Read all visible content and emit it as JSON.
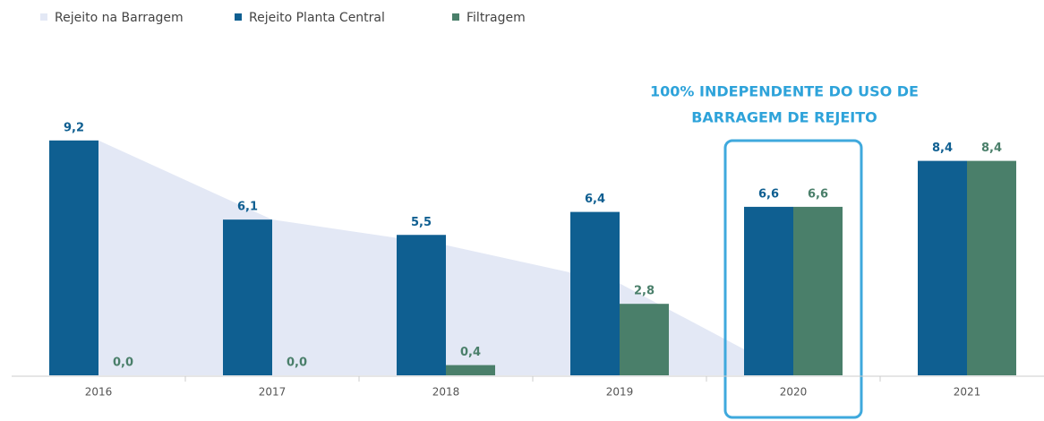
{
  "chart_data": {
    "type": "bar",
    "categories": [
      "2016",
      "2017",
      "2018",
      "2019",
      "2020",
      "2021"
    ],
    "series": [
      {
        "name": "Rejeito na Barragem",
        "color": "#e3e8f5",
        "kind": "area",
        "values": [
          9.2,
          6.1,
          5.1,
          3.6,
          0,
          null
        ]
      },
      {
        "name": "Rejeito Planta Central",
        "color": "#0f5f91",
        "values": [
          9.2,
          6.1,
          5.5,
          6.4,
          6.6,
          8.4
        ],
        "value_labels": [
          "9,2",
          "6,1",
          "5,5",
          "6,4",
          "6,6",
          "8,4"
        ]
      },
      {
        "name": "Filtragem",
        "color": "#4a7f6a",
        "values": [
          0,
          0,
          0.4,
          2.8,
          6.6,
          8.4
        ],
        "value_labels": [
          "0,0",
          "0,0",
          "0,4",
          "2,8",
          "6,6",
          "8,4"
        ]
      }
    ],
    "ylim": [
      0,
      10
    ],
    "annotation": [
      "100% INDEPENDENTE DO USO DE",
      "BARRAGEM DE REJEITO"
    ],
    "highlight": "2020",
    "legend": "top-left"
  }
}
